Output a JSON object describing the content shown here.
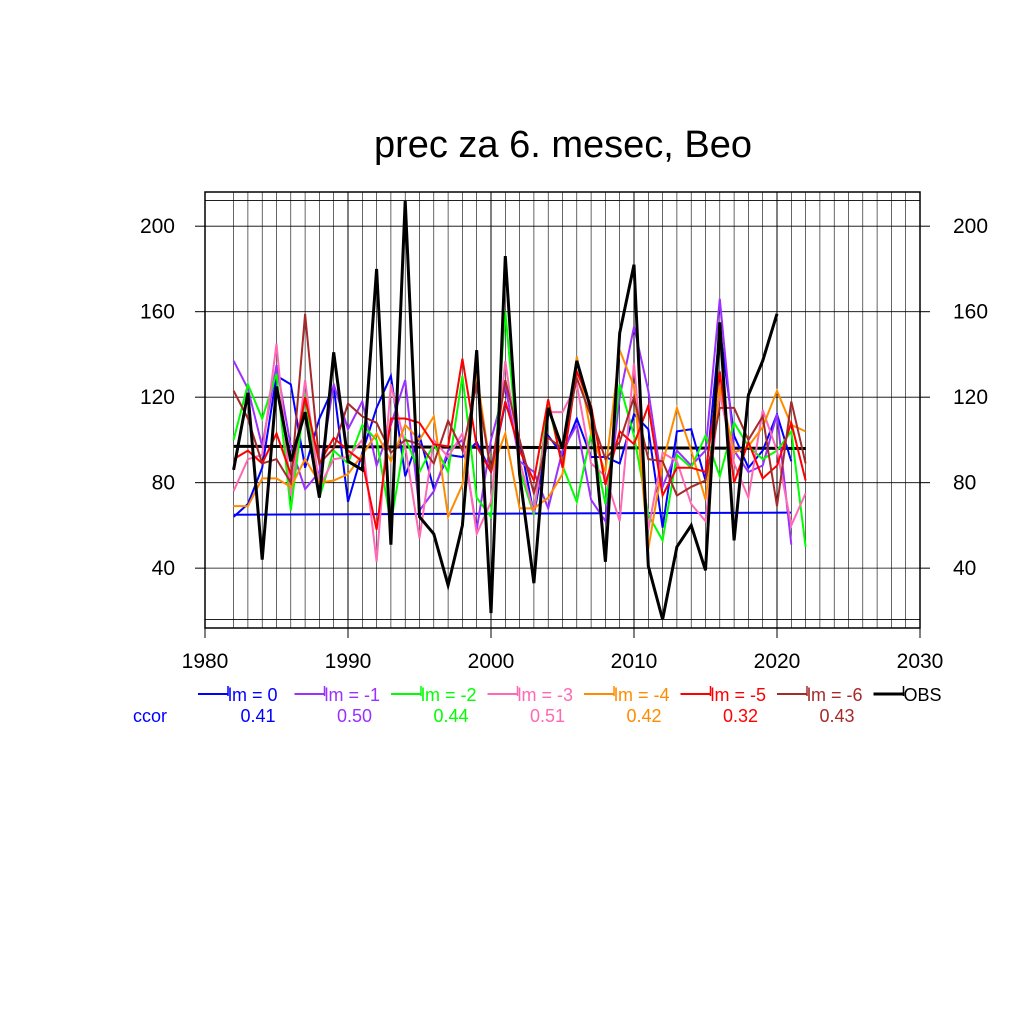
{
  "chart_data": {
    "type": "line",
    "title": "prec za 6. mesec, Beo",
    "xlim": [
      1980,
      2030
    ],
    "ylim": [
      12,
      216
    ],
    "x_ticks": [
      1980,
      1990,
      2000,
      2010,
      2020,
      2030
    ],
    "y_ticks": [
      40,
      80,
      120,
      160,
      200
    ],
    "grid": true,
    "legend_position": "bottom",
    "ccor_label": "ccor",
    "series": [
      {
        "name": "lm = 0",
        "color": "#0000ff",
        "ccor": "0.41",
        "width": 2,
        "x": [
          1982,
          1983,
          1984,
          1985,
          1986,
          1987,
          1988,
          1989,
          1990,
          1991,
          1992,
          1993,
          1994,
          1995,
          1996,
          1997,
          1998,
          1999,
          2000,
          2001,
          2002,
          2003,
          2004,
          2005,
          2006,
          2007,
          2008,
          2009,
          2010,
          2011,
          2012,
          2013,
          2014,
          2015,
          2016,
          2017,
          2018,
          2019,
          2020,
          2021
        ],
        "y": [
          64,
          70,
          87,
          130,
          126,
          87,
          110,
          125,
          71,
          94,
          115,
          130,
          83,
          102,
          77,
          93,
          92,
          99,
          85,
          117,
          100,
          65,
          102,
          93,
          110,
          92,
          92,
          89,
          112,
          105,
          59,
          104,
          105,
          81,
          152,
          102,
          87,
          95,
          112,
          90
        ]
      },
      {
        "name": "lm = -1",
        "color": "#9b30ff",
        "ccor": "0.50",
        "width": 2,
        "x": [
          1982,
          1983,
          1984,
          1985,
          1986,
          1987,
          1988,
          1989,
          1990,
          1991,
          1992,
          1993,
          1994,
          1995,
          1996,
          1997,
          1998,
          1999,
          2000,
          2001,
          2002,
          2003,
          2004,
          2005,
          2006,
          2007,
          2008,
          2009,
          2010,
          2011,
          2012,
          2013,
          2014,
          2015,
          2016,
          2017,
          2018,
          2019,
          2020,
          2021
        ],
        "y": [
          137,
          124,
          97,
          135,
          97,
          77,
          85,
          126,
          105,
          118,
          88,
          107,
          128,
          67,
          76,
          95,
          100,
          58,
          100,
          125,
          90,
          85,
          68,
          95,
          107,
          72,
          62,
          120,
          153,
          123,
          78,
          95,
          88,
          95,
          166,
          95,
          85,
          88,
          112,
          51
        ]
      },
      {
        "name": "lm = -2",
        "color": "#00ff00",
        "ccor": "0.44",
        "width": 2,
        "x": [
          1982,
          1983,
          1984,
          1985,
          1986,
          1987,
          1988,
          1989,
          1990,
          1991,
          1992,
          1993,
          1994,
          1995,
          1996,
          1997,
          1998,
          1999,
          2000,
          2001,
          2002,
          2003,
          2004,
          2005,
          2006,
          2007,
          2008,
          2009,
          2010,
          2011,
          2012,
          2013,
          2014,
          2015,
          2016,
          2017,
          2018,
          2019,
          2020,
          2021,
          2022
        ],
        "y": [
          100,
          126,
          110,
          131,
          67,
          121,
          73,
          95,
          89,
          107,
          100,
          61,
          101,
          85,
          98,
          85,
          130,
          73,
          64,
          160,
          86,
          65,
          117,
          88,
          71,
          103,
          70,
          126,
          102,
          65,
          53,
          93,
          87,
          102,
          83,
          108,
          97,
          91,
          95,
          104,
          50
        ]
      },
      {
        "name": "lm = -3",
        "color": "#ff69b4",
        "ccor": "0.51",
        "width": 2,
        "x": [
          1982,
          1983,
          1984,
          1985,
          1986,
          1987,
          1988,
          1989,
          1990,
          1991,
          1992,
          1993,
          1994,
          1995,
          1996,
          1997,
          1998,
          1999,
          2000,
          2001,
          2002,
          2003,
          2004,
          2005,
          2006,
          2007,
          2008,
          2009,
          2010,
          2011,
          2012,
          2013,
          2014,
          2015,
          2016,
          2017,
          2018,
          2019,
          2020,
          2021,
          2022
        ],
        "y": [
          76,
          91,
          93,
          145,
          74,
          128,
          78,
          91,
          92,
          100,
          43,
          126,
          97,
          54,
          100,
          92,
          103,
          56,
          71,
          137,
          90,
          66,
          113,
          113,
          126,
          89,
          83,
          62,
          136,
          58,
          94,
          90,
          70,
          62,
          122,
          89,
          73,
          114,
          95,
          60,
          75
        ]
      },
      {
        "name": "lm = -4",
        "color": "#ff8c00",
        "ccor": "0.42",
        "width": 2,
        "x": [
          1982,
          1983,
          1984,
          1985,
          1986,
          1987,
          1988,
          1989,
          1990,
          1991,
          1992,
          1993,
          1994,
          1995,
          1996,
          1997,
          1998,
          1999,
          2000,
          2001,
          2002,
          2003,
          2004,
          2005,
          2006,
          2007,
          2008,
          2009,
          2010,
          2011,
          2012,
          2013,
          2014,
          2015,
          2016,
          2017,
          2018,
          2019,
          2020,
          2021,
          2022
        ],
        "y": [
          69,
          69,
          82,
          82,
          78,
          91,
          80,
          81,
          84,
          93,
          103,
          90,
          107,
          100,
          111,
          64,
          79,
          131,
          85,
          103,
          68,
          68,
          73,
          84,
          139,
          103,
          85,
          142,
          125,
          49,
          89,
          115,
          95,
          72,
          125,
          94,
          97,
          106,
          123,
          107,
          104
        ]
      },
      {
        "name": "lm = -5",
        "color": "#ff0000",
        "ccor": "0.32",
        "width": 2,
        "x": [
          1982,
          1983,
          1984,
          1985,
          1986,
          1987,
          1988,
          1989,
          1990,
          1991,
          1992,
          1993,
          1994,
          1995,
          1996,
          1997,
          1998,
          1999,
          2000,
          2001,
          2002,
          2003,
          2004,
          2005,
          2006,
          2007,
          2008,
          2009,
          2010,
          2011,
          2012,
          2013,
          2014,
          2015,
          2016,
          2017,
          2018,
          2019,
          2020,
          2021,
          2022
        ],
        "y": [
          91,
          95,
          89,
          103,
          84,
          120,
          89,
          101,
          95,
          90,
          58,
          110,
          110,
          108,
          98,
          97,
          138,
          97,
          85,
          118,
          95,
          81,
          119,
          87,
          132,
          116,
          79,
          104,
          98,
          116,
          74,
          87,
          87,
          85,
          132,
          80,
          99,
          82,
          88,
          108,
          81
        ]
      },
      {
        "name": "lm = -6",
        "color": "#a52a2a",
        "ccor": "0.43",
        "width": 2,
        "x": [
          1982,
          1983,
          1984,
          1985,
          1986,
          1987,
          1988,
          1989,
          1990,
          1991,
          1992,
          1993,
          1994,
          1995,
          1996,
          1997,
          1998,
          1999,
          2000,
          2001,
          2002,
          2003,
          2004,
          2005,
          2006,
          2007,
          2008,
          2009,
          2010,
          2011,
          2012,
          2013,
          2014,
          2015,
          2016,
          2017,
          2018,
          2019,
          2020,
          2021,
          2022
        ],
        "y": [
          123,
          110,
          89,
          91,
          80,
          159,
          89,
          96,
          117,
          111,
          108,
          94,
          100,
          98,
          89,
          109,
          95,
          126,
          85,
          128,
          100,
          75,
          101,
          96,
          129,
          111,
          91,
          99,
          120,
          91,
          90,
          74,
          78,
          81,
          115,
          115,
          100,
          111,
          69,
          118,
          89
        ]
      },
      {
        "name": "OBS",
        "color": "#000000",
        "ccor": "",
        "width": 3,
        "x": [
          1982,
          1983,
          1984,
          1985,
          1986,
          1987,
          1988,
          1989,
          1990,
          1991,
          1992,
          1993,
          1994,
          1995,
          1996,
          1997,
          1998,
          1999,
          2000,
          2001,
          2002,
          2003,
          2004,
          2005,
          2006,
          2007,
          2008,
          2009,
          2010,
          2011,
          2012,
          2013,
          2014,
          2015,
          2016,
          2017,
          2018,
          2019,
          2020
        ],
        "y": [
          86,
          122,
          44,
          125,
          90,
          113,
          73,
          141,
          90,
          86,
          180,
          51,
          212,
          64,
          56,
          32,
          60,
          142,
          19,
          186,
          84,
          33,
          115,
          96,
          137,
          114,
          43,
          150,
          182,
          41,
          16,
          50,
          60,
          39,
          155,
          53,
          121,
          137,
          159
        ]
      }
    ],
    "reference_lines": [
      {
        "color": "#0000ff",
        "width": 2,
        "x": [
          1982,
          2021
        ],
        "y": [
          65,
          66
        ]
      },
      {
        "color": "#000000",
        "width": 3,
        "x": [
          1982,
          2022
        ],
        "y": [
          97,
          96
        ]
      }
    ]
  }
}
